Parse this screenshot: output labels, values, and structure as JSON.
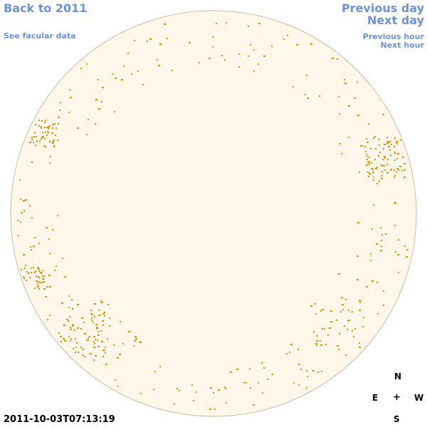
{
  "nav": {
    "back_label": "Back to 2011",
    "facular_label": "See facular data",
    "prev_day_label": "Previous day",
    "next_day_label": "Next day",
    "prev_hour_label": "Previous hour",
    "next_hour_label": "Next hour"
  },
  "compass": {
    "north": "N",
    "east": "E",
    "center": "+",
    "west": "W",
    "south": "S"
  },
  "timestamp": "2011-10-03T07:13:19",
  "colors": {
    "link": "#6b93d6",
    "disk_fill": "#fff8ea",
    "disk_stroke": "#c8bba4",
    "facula": "#e8900a"
  }
}
